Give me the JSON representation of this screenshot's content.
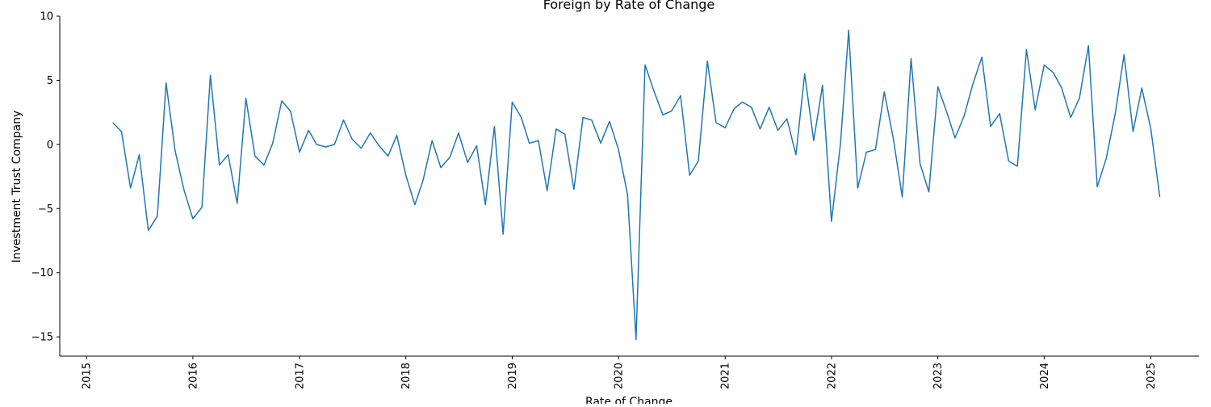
{
  "chart_data": {
    "type": "line",
    "title": "Foreign by Rate of Change",
    "xlabel": "Rate of Change",
    "ylabel": "Investment Trust Company",
    "xlim": [
      "2014-10-01",
      "2025-06-15"
    ],
    "ylim": [
      -16.5,
      10
    ],
    "xticks": [
      "2015",
      "2016",
      "2017",
      "2018",
      "2019",
      "2020",
      "2021",
      "2022",
      "2023",
      "2024",
      "2025"
    ],
    "yticks": [
      10,
      5,
      0,
      -5,
      -10,
      -15
    ],
    "ytick_labels": [
      "10",
      "5",
      "0",
      "−5",
      "−10",
      "−15"
    ],
    "grid": false,
    "series": [
      {
        "color": "#1f77b4",
        "x": [
          "2015-04",
          "2015-05",
          "2015-06",
          "2015-07",
          "2015-08",
          "2015-09",
          "2015-10",
          "2015-11",
          "2015-12",
          "2016-01",
          "2016-02",
          "2016-03",
          "2016-04",
          "2016-05",
          "2016-06",
          "2016-07",
          "2016-08",
          "2016-09",
          "2016-10",
          "2016-11",
          "2016-12",
          "2017-01",
          "2017-02",
          "2017-03",
          "2017-04",
          "2017-05",
          "2017-06",
          "2017-07",
          "2017-08",
          "2017-09",
          "2017-10",
          "2017-11",
          "2017-12",
          "2018-01",
          "2018-02",
          "2018-03",
          "2018-04",
          "2018-05",
          "2018-06",
          "2018-07",
          "2018-08",
          "2018-09",
          "2018-10",
          "2018-11",
          "2018-12",
          "2019-01",
          "2019-02",
          "2019-03",
          "2019-04",
          "2019-05",
          "2019-06",
          "2019-07",
          "2019-08",
          "2019-09",
          "2019-10",
          "2019-11",
          "2019-12",
          "2020-01",
          "2020-02",
          "2020-03",
          "2020-04",
          "2020-05",
          "2020-06",
          "2020-07",
          "2020-08",
          "2020-09",
          "2020-10",
          "2020-11",
          "2020-12",
          "2021-01",
          "2021-02",
          "2021-03",
          "2021-04",
          "2021-05",
          "2021-06",
          "2021-07",
          "2021-08",
          "2021-09",
          "2021-10",
          "2021-11",
          "2021-12",
          "2022-01",
          "2022-02",
          "2022-03",
          "2022-04",
          "2022-05",
          "2022-06",
          "2022-07",
          "2022-08",
          "2022-09",
          "2022-10",
          "2022-11",
          "2022-12",
          "2023-01",
          "2023-02",
          "2023-03",
          "2023-04",
          "2023-05",
          "2023-06",
          "2023-07",
          "2023-08",
          "2023-09",
          "2023-10",
          "2023-11",
          "2023-12",
          "2024-01",
          "2024-02",
          "2024-03",
          "2024-04",
          "2024-05",
          "2024-06",
          "2024-07",
          "2024-08",
          "2024-09",
          "2024-10",
          "2024-11",
          "2024-12",
          "2025-01",
          "2025-02"
        ],
        "y": [
          1.7,
          1.0,
          -3.4,
          -0.8,
          -6.7,
          -5.6,
          4.8,
          -0.5,
          -3.5,
          -5.8,
          -4.9,
          5.4,
          -1.6,
          -0.8,
          -4.6,
          3.6,
          -0.9,
          -1.6,
          0.1,
          3.4,
          2.6,
          -0.6,
          1.1,
          0.0,
          -0.2,
          0.0,
          1.9,
          0.4,
          -0.3,
          0.9,
          -0.1,
          -0.9,
          0.7,
          -2.4,
          -4.7,
          -2.8,
          0.3,
          -1.8,
          -1.0,
          0.9,
          -1.4,
          -0.1,
          -4.7,
          1.4,
          -7.0,
          3.3,
          2.1,
          0.1,
          0.3,
          -3.6,
          1.2,
          0.8,
          -3.5,
          2.1,
          1.9,
          0.1,
          1.8,
          -0.4,
          -3.9,
          -15.2,
          6.2,
          4.2,
          2.3,
          2.6,
          3.8,
          -2.4,
          -1.3,
          6.5,
          1.7,
          1.3,
          2.8,
          3.3,
          2.9,
          1.2,
          2.9,
          1.1,
          2.0,
          -0.8,
          5.5,
          0.3,
          4.6,
          -6.0,
          0.1,
          8.9,
          -3.4,
          -0.6,
          -0.4,
          4.1,
          0.5,
          -4.1,
          6.7,
          -1.5,
          -3.7,
          4.5,
          2.5,
          0.5,
          2.2,
          4.7,
          6.8,
          1.4,
          2.4,
          -1.3,
          -1.7,
          7.4,
          2.7,
          6.2,
          5.6,
          4.4,
          2.1,
          3.6,
          7.7,
          -3.3,
          -1.1,
          2.4,
          7.0,
          1.0,
          4.4,
          1.2,
          -4.1
        ]
      }
    ]
  }
}
